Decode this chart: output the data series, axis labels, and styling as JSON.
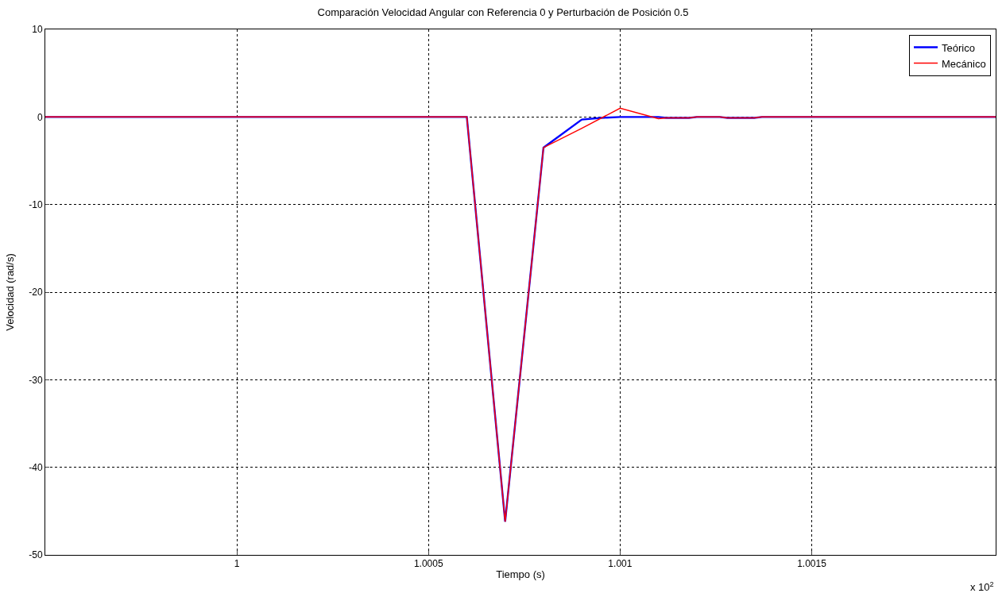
{
  "chart_data": {
    "type": "line",
    "title": "Comparación Velocidad Angular con Referencia 0 y Perturbación de Posición 0.5",
    "xlabel": "Tiempo (s)",
    "ylabel": "Velocidad (rad/s)",
    "annotations": [
      "x 10$^{2}$"
    ],
    "series": [
      {
        "name": "Teórico",
        "color": "#0000ff",
        "x": [
          0.9995,
          1.0006,
          1.0007,
          1.0008,
          1.0009,
          1.00095,
          1.001,
          1.0011,
          1.00112,
          1.00118,
          1.0012,
          1.00126,
          1.00128,
          1.00135,
          1.00137,
          1.00198
        ],
        "values": [
          0,
          0,
          -46.2,
          -3.5,
          -0.3,
          -0.1,
          0,
          0,
          -0.1,
          -0.1,
          0,
          0,
          -0.1,
          -0.1,
          0,
          0
        ]
      },
      {
        "name": "Mecánico",
        "color": "#ff0000",
        "x": [
          0.9995,
          1.0006,
          1.0007,
          1.0008,
          1.0009,
          1.001,
          1.0011,
          1.00112,
          1.00118,
          1.0012,
          1.00126,
          1.00128,
          1.00135,
          1.00137,
          1.00198
        ],
        "values": [
          0,
          0,
          -46.2,
          -3.5,
          -1.3,
          1.0,
          -0.2,
          -0.1,
          -0.1,
          0,
          0,
          -0.1,
          -0.1,
          0,
          0
        ]
      }
    ],
    "xlim": [
      0.9995,
      1.00198
    ],
    "xticks": [
      1,
      1.0005,
      1.001,
      1.0015
    ],
    "ylim": [
      -50,
      10
    ],
    "yticks": [
      -50,
      -40,
      -30,
      -20,
      -10,
      0,
      10
    ],
    "grid": true,
    "legend": "top right",
    "line_style": "solid",
    "marker": "none"
  }
}
